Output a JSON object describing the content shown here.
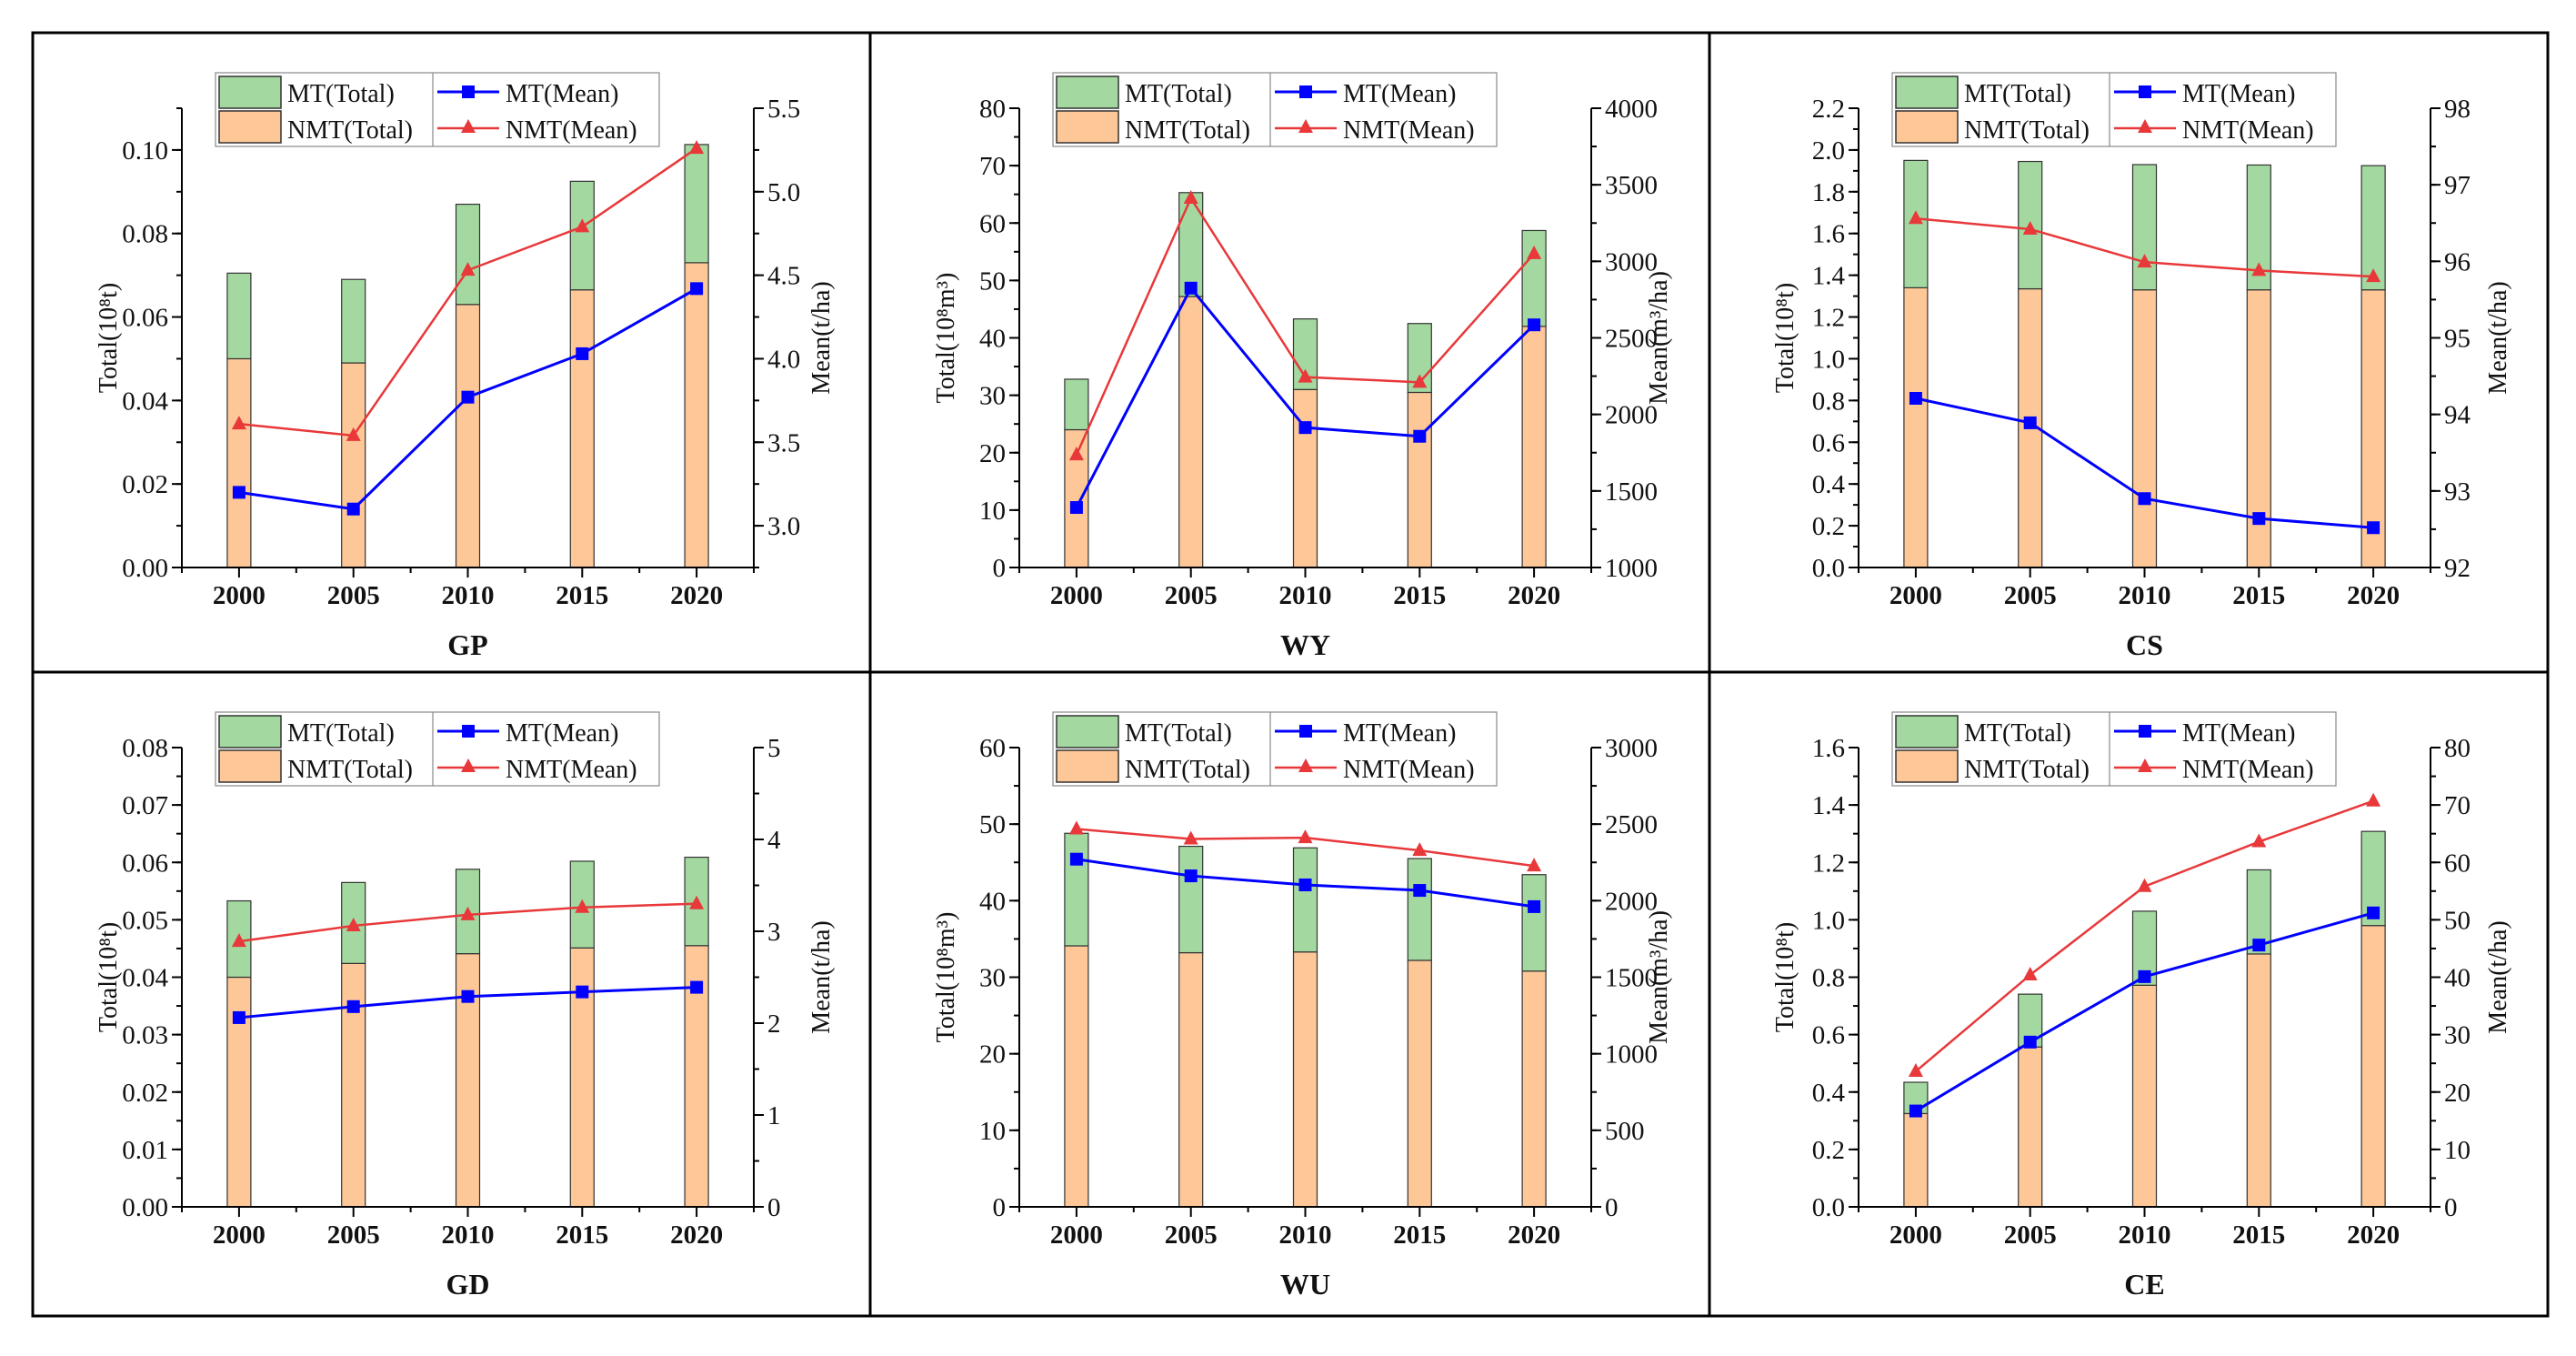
{
  "colors": {
    "mt_total": "#a3d9a0",
    "nmt_total": "#fdc797",
    "mt_mean": "#0000ff",
    "nmt_mean": "#e8383a"
  },
  "chart_data": [
    {
      "type": "bar+line",
      "title": "GP",
      "categories": [
        "2000",
        "2005",
        "2010",
        "2015",
        "2020"
      ],
      "ylabel_left": "Total(10⁸t)",
      "ylabel_right": "Mean(t/ha)",
      "ylim_left": [
        0,
        0.11
      ],
      "ylim_right": [
        2.75,
        5.5
      ],
      "left_ticks": [
        "0.00",
        "0.02",
        "0.04",
        "0.06",
        "0.08",
        "0.10"
      ],
      "left_minor": 0.01,
      "right_ticks": [
        "3.0",
        "3.5",
        "4.0",
        "4.5",
        "5.0",
        "5.5"
      ],
      "right_minor": 0.25,
      "series": [
        {
          "name": "NMT(Total)",
          "type": "stacked-bar",
          "axis": "left",
          "values": [
            0.05,
            0.049,
            0.063,
            0.0665,
            0.073
          ]
        },
        {
          "name": "MT(Total)",
          "type": "stacked-bar",
          "axis": "left",
          "values": [
            0.0205,
            0.02,
            0.024,
            0.026,
            0.0283
          ]
        },
        {
          "name": "MT(Mean)",
          "type": "line",
          "axis": "right",
          "values": [
            3.2,
            3.1,
            3.77,
            4.03,
            4.42
          ]
        },
        {
          "name": "NMT(Mean)",
          "type": "line",
          "axis": "right",
          "values": [
            3.61,
            3.54,
            4.53,
            4.79,
            5.26
          ]
        }
      ]
    },
    {
      "type": "bar+line",
      "title": "WY",
      "categories": [
        "2000",
        "2005",
        "2010",
        "2015",
        "2020"
      ],
      "ylabel_left": "Total(10⁸m³)",
      "ylabel_right": "Mean(m³/ha)",
      "ylim_left": [
        0,
        80
      ],
      "ylim_right": [
        1000,
        4000
      ],
      "left_ticks": [
        "0",
        "10",
        "20",
        "30",
        "40",
        "50",
        "60",
        "70",
        "80"
      ],
      "left_minor": 5,
      "right_ticks": [
        "1000",
        "1500",
        "2000",
        "2500",
        "3000",
        "3500",
        "4000"
      ],
      "right_minor": 250,
      "series": [
        {
          "name": "NMT(Total)",
          "type": "stacked-bar",
          "axis": "left",
          "values": [
            24.0,
            47.2,
            31.0,
            30.5,
            42.0
          ]
        },
        {
          "name": "MT(Total)",
          "type": "stacked-bar",
          "axis": "left",
          "values": [
            8.8,
            18.1,
            12.3,
            12.0,
            16.7
          ]
        },
        {
          "name": "MT(Mean)",
          "type": "line",
          "axis": "right",
          "values": [
            1392,
            2825,
            1914,
            1857,
            2585
          ]
        },
        {
          "name": "NMT(Mean)",
          "type": "line",
          "axis": "right",
          "values": [
            1736,
            3412,
            2244,
            2210,
            3050
          ]
        }
      ]
    },
    {
      "type": "bar+line",
      "title": "CS",
      "categories": [
        "2000",
        "2005",
        "2010",
        "2015",
        "2020"
      ],
      "ylabel_left": "Total(10⁸t)",
      "ylabel_right": "Mean(t/ha)",
      "ylim_left": [
        0,
        2.2
      ],
      "ylim_right": [
        92,
        98
      ],
      "left_ticks": [
        "0.0",
        "0.2",
        "0.4",
        "0.6",
        "0.8",
        "1.0",
        "1.2",
        "1.4",
        "1.6",
        "1.8",
        "2.0",
        "2.2"
      ],
      "left_minor": 0.1,
      "right_ticks": [
        "92",
        "93",
        "94",
        "95",
        "96",
        "97",
        "98"
      ],
      "right_minor": 0.5,
      "series": [
        {
          "name": "NMT(Total)",
          "type": "stacked-bar",
          "axis": "left",
          "values": [
            1.34,
            1.335,
            1.33,
            1.33,
            1.33
          ]
        },
        {
          "name": "MT(Total)",
          "type": "stacked-bar",
          "axis": "left",
          "values": [
            0.61,
            0.61,
            0.6,
            0.598,
            0.595
          ]
        },
        {
          "name": "MT(Mean)",
          "type": "line",
          "axis": "right",
          "values": [
            94.21,
            93.89,
            92.9,
            92.64,
            92.52
          ]
        },
        {
          "name": "NMT(Mean)",
          "type": "line",
          "axis": "right",
          "values": [
            96.56,
            96.42,
            95.99,
            95.88,
            95.8
          ]
        }
      ]
    },
    {
      "type": "bar+line",
      "title": "GD",
      "categories": [
        "2000",
        "2005",
        "2010",
        "2015",
        "2020"
      ],
      "ylabel_left": "Total(10⁸t)",
      "ylabel_right": "Mean(t/ha)",
      "ylim_left": [
        0,
        0.08
      ],
      "ylim_right": [
        0,
        5
      ],
      "left_ticks": [
        "0.00",
        "0.01",
        "0.02",
        "0.03",
        "0.04",
        "0.05",
        "0.06",
        "0.07",
        "0.08"
      ],
      "left_minor": 0.005,
      "right_ticks": [
        "0",
        "1",
        "2",
        "3",
        "4",
        "5"
      ],
      "right_minor": 0.5,
      "series": [
        {
          "name": "NMT(Total)",
          "type": "stacked-bar",
          "axis": "left",
          "values": [
            0.04,
            0.0424,
            0.0441,
            0.0451,
            0.0455
          ]
        },
        {
          "name": "MT(Total)",
          "type": "stacked-bar",
          "axis": "left",
          "values": [
            0.0133,
            0.0141,
            0.0147,
            0.0151,
            0.0154
          ]
        },
        {
          "name": "MT(Mean)",
          "type": "line",
          "axis": "right",
          "values": [
            2.06,
            2.18,
            2.29,
            2.34,
            2.39
          ]
        },
        {
          "name": "NMT(Mean)",
          "type": "line",
          "axis": "right",
          "values": [
            2.89,
            3.06,
            3.18,
            3.26,
            3.3
          ]
        }
      ]
    },
    {
      "type": "bar+line",
      "title": "WU",
      "categories": [
        "2000",
        "2005",
        "2010",
        "2015",
        "2020"
      ],
      "ylabel_left": "Total(10⁸m³)",
      "ylabel_right": "Mean(m³/ha)",
      "ylim_left": [
        0,
        60
      ],
      "ylim_right": [
        0,
        3000
      ],
      "left_ticks": [
        "0",
        "10",
        "20",
        "30",
        "40",
        "50",
        "60"
      ],
      "left_minor": 5,
      "right_ticks": [
        "0",
        "500",
        "1000",
        "1500",
        "2000",
        "2500",
        "3000"
      ],
      "right_minor": 250,
      "series": [
        {
          "name": "NMT(Total)",
          "type": "stacked-bar",
          "axis": "left",
          "values": [
            34.1,
            33.2,
            33.3,
            32.2,
            30.8
          ]
        },
        {
          "name": "MT(Total)",
          "type": "stacked-bar",
          "axis": "left",
          "values": [
            14.7,
            13.9,
            13.6,
            13.3,
            12.6
          ]
        },
        {
          "name": "MT(Mean)",
          "type": "line",
          "axis": "right",
          "values": [
            2271,
            2162,
            2103,
            2067,
            1961
          ]
        },
        {
          "name": "NMT(Mean)",
          "type": "line",
          "axis": "right",
          "values": [
            2468,
            2403,
            2411,
            2328,
            2227
          ]
        }
      ]
    },
    {
      "type": "bar+line",
      "title": "CE",
      "categories": [
        "2000",
        "2005",
        "2010",
        "2015",
        "2020"
      ],
      "ylabel_left": "Total(10⁸t)",
      "ylabel_right": "Mean(t/ha)",
      "ylim_left": [
        0,
        1.6
      ],
      "ylim_right": [
        0,
        80
      ],
      "left_ticks": [
        "0.0",
        "0.2",
        "0.4",
        "0.6",
        "0.8",
        "1.0",
        "1.2",
        "1.4",
        "1.6"
      ],
      "left_minor": 0.1,
      "right_ticks": [
        "0",
        "10",
        "20",
        "30",
        "40",
        "50",
        "60",
        "70",
        "80"
      ],
      "right_minor": 5,
      "series": [
        {
          "name": "NMT(Total)",
          "type": "stacked-bar",
          "axis": "left",
          "values": [
            0.325,
            0.557,
            0.772,
            0.881,
            0.98
          ]
        },
        {
          "name": "MT(Total)",
          "type": "stacked-bar",
          "axis": "left",
          "values": [
            0.109,
            0.184,
            0.258,
            0.293,
            0.328
          ]
        },
        {
          "name": "MT(Mean)",
          "type": "line",
          "axis": "right",
          "values": [
            16.7,
            28.7,
            40.1,
            45.6,
            51.2
          ]
        },
        {
          "name": "NMT(Mean)",
          "type": "line",
          "axis": "right",
          "values": [
            23.6,
            40.4,
            55.8,
            63.6,
            70.7
          ]
        }
      ]
    }
  ]
}
